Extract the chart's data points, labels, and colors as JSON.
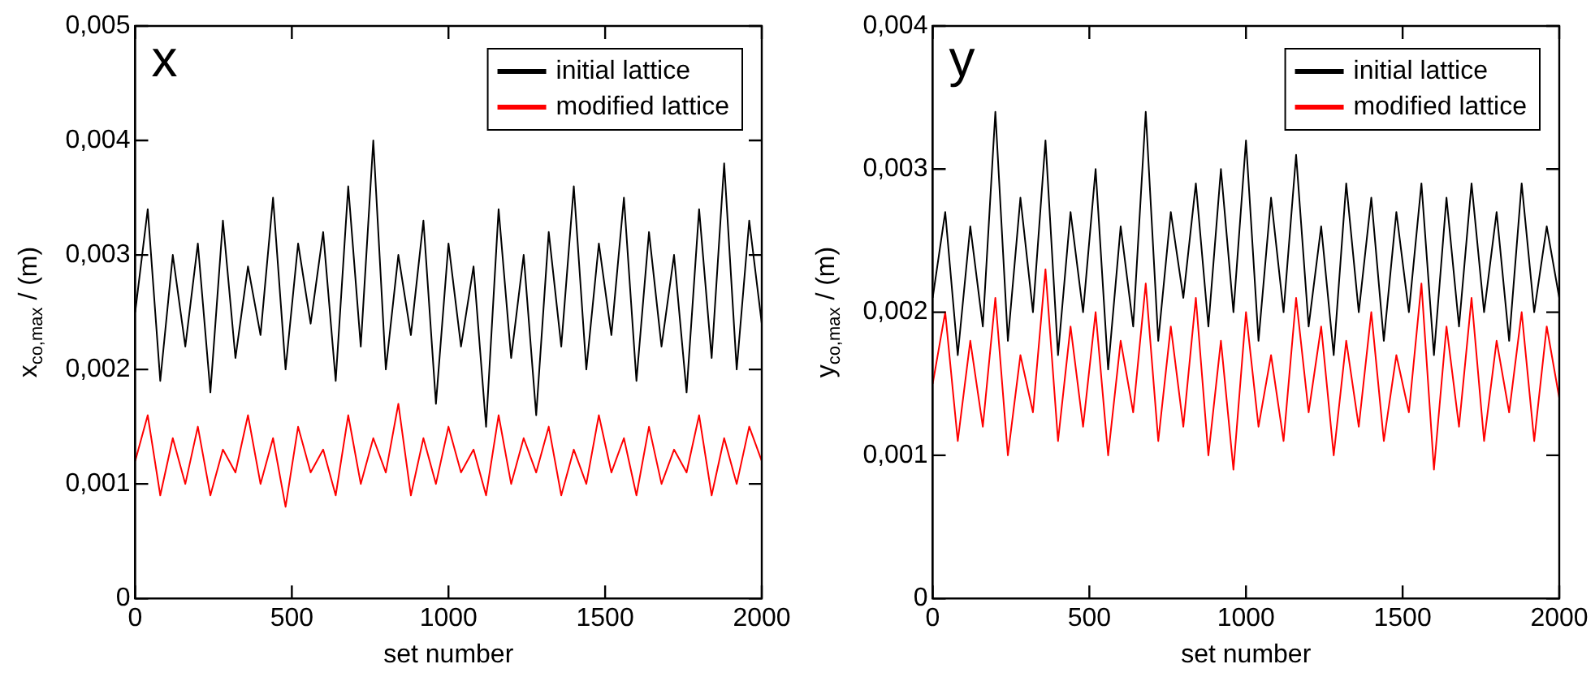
{
  "chart_data": [
    {
      "type": "line",
      "annotations": [
        "x"
      ],
      "xlabel": "set number",
      "ylabel": "x$_{co,max}$ / (m)",
      "legend": "top right",
      "grid": false,
      "marker": "none",
      "line_style": "solid",
      "xlim": [
        0,
        2000
      ],
      "xticks": [
        0,
        500,
        1000,
        1500,
        2000
      ],
      "ylim": [
        0,
        0.005
      ],
      "yticks": [
        0,
        {
          "value": 0.001,
          "label": "0,001"
        },
        {
          "value": 0.002,
          "label": "0,002"
        },
        {
          "value": 0.003,
          "label": "0,003"
        },
        {
          "value": 0.004,
          "label": "0,004"
        },
        {
          "value": 0.005,
          "label": "0,005"
        }
      ],
      "x": [
        0,
        40,
        80,
        120,
        160,
        200,
        240,
        280,
        320,
        360,
        400,
        440,
        480,
        520,
        560,
        600,
        640,
        680,
        720,
        760,
        800,
        840,
        880,
        920,
        960,
        1000,
        1040,
        1080,
        1120,
        1160,
        1200,
        1240,
        1280,
        1320,
        1360,
        1400,
        1440,
        1480,
        1520,
        1560,
        1600,
        1640,
        1680,
        1720,
        1760,
        1800,
        1840,
        1880,
        1920,
        1960,
        2000
      ],
      "series": [
        {
          "name": "initial lattice",
          "color": "#000000",
          "values": [
            0.0025,
            0.0034,
            0.0019,
            0.003,
            0.0022,
            0.0031,
            0.0018,
            0.0033,
            0.0021,
            0.0029,
            0.0023,
            0.0035,
            0.002,
            0.0031,
            0.0024,
            0.0032,
            0.0019,
            0.0036,
            0.0022,
            0.004,
            0.002,
            0.003,
            0.0023,
            0.0033,
            0.0017,
            0.0031,
            0.0022,
            0.0029,
            0.0015,
            0.0034,
            0.0021,
            0.003,
            0.0016,
            0.0032,
            0.0022,
            0.0036,
            0.002,
            0.0031,
            0.0023,
            0.0035,
            0.0019,
            0.0032,
            0.0022,
            0.003,
            0.0018,
            0.0034,
            0.0021,
            0.0038,
            0.002,
            0.0033,
            0.0024
          ]
        },
        {
          "name": "modified lattice",
          "color": "#ff0000",
          "values": [
            0.0012,
            0.0016,
            0.0009,
            0.0014,
            0.001,
            0.0015,
            0.0009,
            0.0013,
            0.0011,
            0.0016,
            0.001,
            0.0014,
            0.0008,
            0.0015,
            0.0011,
            0.0013,
            0.0009,
            0.0016,
            0.001,
            0.0014,
            0.0011,
            0.0017,
            0.0009,
            0.0014,
            0.001,
            0.0015,
            0.0011,
            0.0013,
            0.0009,
            0.0016,
            0.001,
            0.0014,
            0.0011,
            0.0015,
            0.0009,
            0.0013,
            0.001,
            0.0016,
            0.0011,
            0.0014,
            0.0009,
            0.0015,
            0.001,
            0.0013,
            0.0011,
            0.0016,
            0.0009,
            0.0014,
            0.001,
            0.0015,
            0.0012
          ]
        }
      ]
    },
    {
      "type": "line",
      "annotations": [
        "y"
      ],
      "xlabel": "set number",
      "ylabel": "y$_{co,max}$ / (m)",
      "legend": "top right",
      "grid": false,
      "marker": "none",
      "line_style": "solid",
      "xlim": [
        0,
        2000
      ],
      "xticks": [
        0,
        500,
        1000,
        1500,
        2000
      ],
      "ylim": [
        0,
        0.004
      ],
      "yticks": [
        0,
        {
          "value": 0.001,
          "label": "0,001"
        },
        {
          "value": 0.002,
          "label": "0,002"
        },
        {
          "value": 0.003,
          "label": "0,003"
        },
        {
          "value": 0.004,
          "label": "0,004"
        }
      ],
      "x": [
        0,
        40,
        80,
        120,
        160,
        200,
        240,
        280,
        320,
        360,
        400,
        440,
        480,
        520,
        560,
        600,
        640,
        680,
        720,
        760,
        800,
        840,
        880,
        920,
        960,
        1000,
        1040,
        1080,
        1120,
        1160,
        1200,
        1240,
        1280,
        1320,
        1360,
        1400,
        1440,
        1480,
        1520,
        1560,
        1600,
        1640,
        1680,
        1720,
        1760,
        1800,
        1840,
        1880,
        1920,
        1960,
        2000
      ],
      "series": [
        {
          "name": "initial lattice",
          "color": "#000000",
          "values": [
            0.0021,
            0.0027,
            0.0017,
            0.0026,
            0.0019,
            0.0034,
            0.0018,
            0.0028,
            0.002,
            0.0032,
            0.0017,
            0.0027,
            0.002,
            0.003,
            0.0016,
            0.0026,
            0.0019,
            0.0034,
            0.0018,
            0.0027,
            0.0021,
            0.0029,
            0.0019,
            0.003,
            0.002,
            0.0032,
            0.0018,
            0.0028,
            0.002,
            0.0031,
            0.0019,
            0.0026,
            0.0017,
            0.0029,
            0.002,
            0.0028,
            0.0018,
            0.0027,
            0.002,
            0.0029,
            0.0017,
            0.0028,
            0.0019,
            0.0029,
            0.002,
            0.0027,
            0.0018,
            0.0029,
            0.002,
            0.0026,
            0.0021
          ]
        },
        {
          "name": "modified lattice",
          "color": "#ff0000",
          "values": [
            0.0015,
            0.002,
            0.0011,
            0.0018,
            0.0012,
            0.0021,
            0.001,
            0.0017,
            0.0013,
            0.0023,
            0.0011,
            0.0019,
            0.0012,
            0.002,
            0.001,
            0.0018,
            0.0013,
            0.0022,
            0.0011,
            0.0019,
            0.0012,
            0.0021,
            0.001,
            0.0018,
            0.0009,
            0.002,
            0.0012,
            0.0017,
            0.0011,
            0.0021,
            0.0013,
            0.0019,
            0.001,
            0.0018,
            0.0012,
            0.002,
            0.0011,
            0.0017,
            0.0013,
            0.0022,
            0.0009,
            0.0019,
            0.0012,
            0.0021,
            0.0011,
            0.0018,
            0.0013,
            0.002,
            0.0011,
            0.0019,
            0.0014
          ]
        }
      ]
    }
  ]
}
